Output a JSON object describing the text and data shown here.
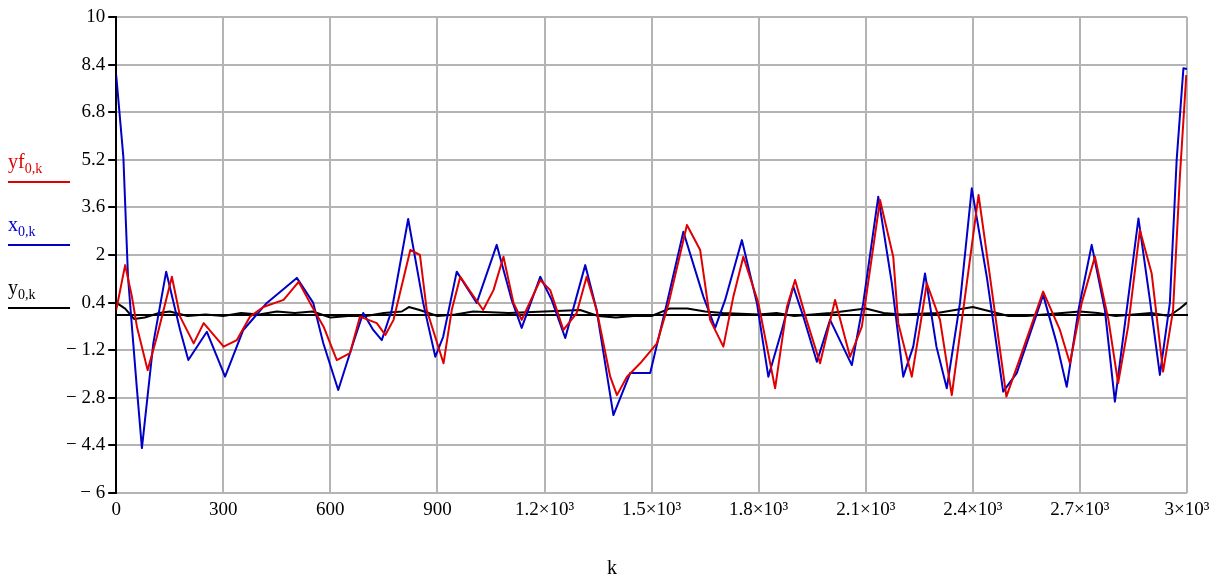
{
  "chart_data": {
    "type": "line",
    "xlabel": "k",
    "legend": "left",
    "grid": true,
    "marker": "none",
    "line_style": "solid",
    "xlim": [
      0,
      3000
    ],
    "ylim": [
      -6,
      10
    ],
    "xticks": [
      0,
      300,
      600,
      900,
      {
        "value": 1200,
        "label": "1.2×10³"
      },
      {
        "value": 1500,
        "label": "1.5×10³"
      },
      {
        "value": 1800,
        "label": "1.8×10³"
      },
      {
        "value": 2100,
        "label": "2.1×10³"
      },
      {
        "value": 2400,
        "label": "2.4×10³"
      },
      {
        "value": 2700,
        "label": "2.7×10³"
      },
      {
        "value": 3000,
        "label": "3×10³"
      }
    ],
    "yticks": [
      {
        "value": -6,
        "label": "− 6"
      },
      {
        "value": -4.4,
        "label": "− 4.4"
      },
      {
        "value": -2.8,
        "label": "− 2.8"
      },
      {
        "value": -1.2,
        "label": "− 1.2"
      },
      0.4,
      2,
      3.6,
      5.2,
      6.8,
      8.4,
      10
    ],
    "series": [
      {
        "name": "yf$_{0,k}$",
        "color": "#e00000",
        "x": [
          0,
          25,
          44,
          58,
          88,
          114,
          156,
          179,
          217,
          245,
          301,
          338,
          375,
          412,
          469,
          511,
          543,
          581,
          618,
          655,
          683,
          730,
          754,
          777,
          824,
          851,
          870,
          917,
          940,
          964,
          992,
          1028,
          1057,
          1085,
          1113,
          1136,
          1188,
          1216,
          1253,
          1290,
          1318,
          1346,
          1384,
          1403,
          1431,
          1468,
          1515,
          1548,
          1599,
          1636,
          1664,
          1701,
          1729,
          1757,
          1799,
          1846,
          1879,
          1902,
          1934,
          1972,
          2014,
          2056,
          2089,
          2140,
          2177,
          2191,
          2229,
          2252,
          2271,
          2308,
          2341,
          2373,
          2416,
          2448,
          2494,
          2537,
          2597,
          2644,
          2672,
          2705,
          2742,
          2780,
          2807,
          2835,
          2868,
          2901,
          2933,
          2961,
          2980,
          2998
        ],
        "values": [
          0.15,
          1.66,
          0.6,
          -0.41,
          -1.87,
          -0.75,
          1.27,
          -0.07,
          -0.97,
          -0.29,
          -1.08,
          -0.86,
          -0.07,
          0.25,
          0.49,
          1.1,
          0.39,
          -0.41,
          -1.53,
          -1.3,
          -0.07,
          -0.29,
          -0.69,
          -0.18,
          2.17,
          2.0,
          0.15,
          -1.64,
          0.15,
          1.27,
          0.77,
          0.15,
          0.82,
          1.94,
          0.39,
          -0.18,
          1.16,
          0.82,
          -0.52,
          0.05,
          1.27,
          0.15,
          -2.09,
          -2.71,
          -2.09,
          -1.64,
          -0.97,
          0.39,
          3.01,
          2.17,
          -0.18,
          -1.08,
          0.6,
          1.94,
          0.39,
          -2.48,
          0.25,
          1.16,
          -0.18,
          -1.64,
          0.49,
          -1.42,
          -0.41,
          3.85,
          1.94,
          -0.29,
          -2.09,
          -0.41,
          1.05,
          -0.18,
          -2.71,
          0.15,
          4.02,
          1.27,
          -2.76,
          -1.3,
          0.77,
          -0.52,
          -1.64,
          0.39,
          1.94,
          -0.18,
          -2.31,
          -0.41,
          2.84,
          1.38,
          -1.92,
          0.15,
          4.63,
          8.05
        ]
      },
      {
        "name": "x$_{0,k}$",
        "color": "#0000c8",
        "x": [
          0,
          20,
          33,
          44,
          58,
          72,
          104,
          140,
          179,
          202,
          254,
          305,
          356,
          422,
          506,
          552,
          580,
          622,
          664,
          692,
          720,
          744,
          772,
          818,
          860,
          894,
          916,
          954,
          1010,
          1066,
          1108,
          1136,
          1188,
          1220,
          1258,
          1314,
          1346,
          1393,
          1440,
          1496,
          1543,
          1589,
          1645,
          1678,
          1706,
          1753,
          1795,
          1827,
          1865,
          1897,
          1925,
          1963,
          2000,
          2061,
          2093,
          2135,
          2173,
          2205,
          2233,
          2266,
          2298,
          2327,
          2364,
          2397,
          2439,
          2485,
          2523,
          2597,
          2635,
          2663,
          2696,
          2733,
          2770,
          2798,
          2831,
          2864,
          2896,
          2924,
          2952,
          2971,
          2990,
          3000
        ],
        "values": [
          8.04,
          5.3,
          1.27,
          -0.41,
          -2.5,
          -4.49,
          -0.96,
          1.44,
          -0.52,
          -1.53,
          -0.58,
          -2.09,
          -0.52,
          0.39,
          1.23,
          0.39,
          -0.96,
          -2.54,
          -0.96,
          0.05,
          -0.52,
          -0.86,
          0.15,
          3.21,
          0.39,
          -1.42,
          -0.75,
          1.44,
          0.39,
          2.34,
          0.49,
          -0.45,
          1.27,
          0.49,
          -0.79,
          1.66,
          0.15,
          -3.38,
          -1.97,
          -1.97,
          0.39,
          2.78,
          0.6,
          -0.45,
          0.49,
          2.5,
          0.39,
          -2.09,
          -0.52,
          0.94,
          -0.07,
          -1.59,
          -0.18,
          -1.7,
          0.39,
          3.96,
          1.05,
          -2.09,
          -1.08,
          1.38,
          -1.08,
          -2.48,
          0.39,
          4.24,
          1.27,
          -2.59,
          -1.97,
          0.66,
          -0.97,
          -2.43,
          0.15,
          2.34,
          0.15,
          -2.93,
          0.15,
          3.23,
          0.49,
          -2.03,
          0.39,
          5.19,
          8.28,
          8.25
        ]
      },
      {
        "name": "y$_{0,k}$",
        "color": "#000000",
        "x": [
          0,
          25,
          50,
          80,
          120,
          150,
          200,
          250,
          300,
          350,
          400,
          450,
          500,
          550,
          600,
          650,
          700,
          750,
          800,
          820,
          850,
          900,
          950,
          1000,
          1100,
          1200,
          1300,
          1350,
          1400,
          1450,
          1500,
          1550,
          1600,
          1650,
          1700,
          1800,
          1850,
          1900,
          2000,
          2100,
          2150,
          2200,
          2300,
          2400,
          2450,
          2500,
          2550,
          2600,
          2700,
          2750,
          2800,
          2850,
          2900,
          2950,
          2980,
          3000
        ],
        "values": [
          0.4,
          0.2,
          -0.15,
          -0.1,
          0.05,
          0.1,
          -0.05,
          0.0,
          -0.05,
          0.05,
          0.0,
          0.1,
          0.05,
          0.1,
          -0.1,
          -0.05,
          -0.05,
          0.05,
          0.1,
          0.25,
          0.15,
          -0.05,
          0.0,
          0.1,
          0.05,
          0.1,
          0.15,
          -0.05,
          -0.1,
          -0.05,
          -0.05,
          0.2,
          0.2,
          0.1,
          0.05,
          0.0,
          0.05,
          -0.05,
          0.05,
          0.2,
          0.05,
          0.0,
          0.05,
          0.25,
          0.1,
          -0.05,
          -0.05,
          0.0,
          0.1,
          0.05,
          -0.05,
          0.0,
          0.05,
          -0.05,
          0.2,
          0.4
        ]
      }
    ]
  }
}
